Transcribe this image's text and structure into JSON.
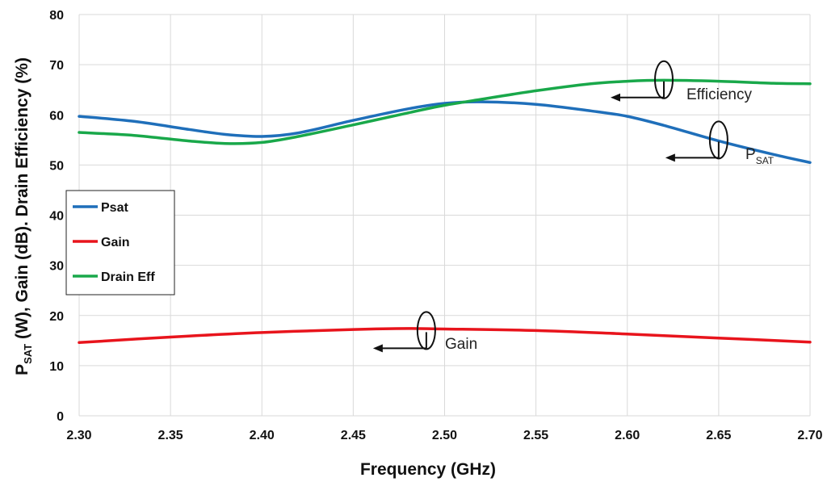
{
  "chart_data": {
    "type": "line",
    "xlabel": "Frequency (GHz)",
    "ylabel": {
      "p": "P",
      "sat": "SAT",
      "rest": " (W), Gain (dB). Drain Efficiency (%)"
    },
    "xlim": [
      2.3,
      2.7
    ],
    "ylim": [
      0,
      80
    ],
    "x_ticks": [
      "2.30",
      "2.35",
      "2.40",
      "2.45",
      "2.50",
      "2.55",
      "2.60",
      "2.65",
      "2.70"
    ],
    "y_ticks": [
      "0",
      "10",
      "20",
      "30",
      "40",
      "50",
      "60",
      "70",
      "80"
    ],
    "grid": true,
    "legend_position": "left",
    "series": [
      {
        "name": "Psat",
        "color": "#1f6fba",
        "x": [
          2.3,
          2.33,
          2.36,
          2.38,
          2.4,
          2.42,
          2.45,
          2.48,
          2.5,
          2.52,
          2.55,
          2.58,
          2.6,
          2.62,
          2.65,
          2.68,
          2.7
        ],
        "y": [
          59.7,
          58.7,
          57.1,
          56.1,
          55.7,
          56.4,
          58.9,
          61.2,
          62.3,
          62.6,
          62.1,
          60.8,
          59.7,
          57.9,
          54.8,
          52.1,
          50.5
        ]
      },
      {
        "name": "Gain",
        "color": "#e8141c",
        "x": [
          2.3,
          2.35,
          2.4,
          2.45,
          2.48,
          2.5,
          2.55,
          2.6,
          2.65,
          2.7
        ],
        "y": [
          14.6,
          15.7,
          16.6,
          17.2,
          17.4,
          17.3,
          17.0,
          16.3,
          15.5,
          14.7
        ]
      },
      {
        "name": "Drain Eff",
        "color": "#19a84a",
        "x": [
          2.3,
          2.33,
          2.36,
          2.38,
          2.4,
          2.42,
          2.45,
          2.48,
          2.5,
          2.52,
          2.55,
          2.58,
          2.6,
          2.62,
          2.65,
          2.68,
          2.7
        ],
        "y": [
          56.5,
          55.9,
          54.8,
          54.3,
          54.5,
          55.7,
          58.0,
          60.4,
          61.9,
          63.1,
          64.8,
          66.2,
          66.7,
          66.9,
          66.7,
          66.3,
          66.2
        ]
      }
    ],
    "annotations": [
      {
        "label": "Efficiency",
        "x": 2.62,
        "y": 67
      },
      {
        "label": "P",
        "sub": "SAT",
        "x": 2.65,
        "y": 55
      },
      {
        "label": "Gain",
        "x": 2.49,
        "y": 17
      }
    ]
  }
}
